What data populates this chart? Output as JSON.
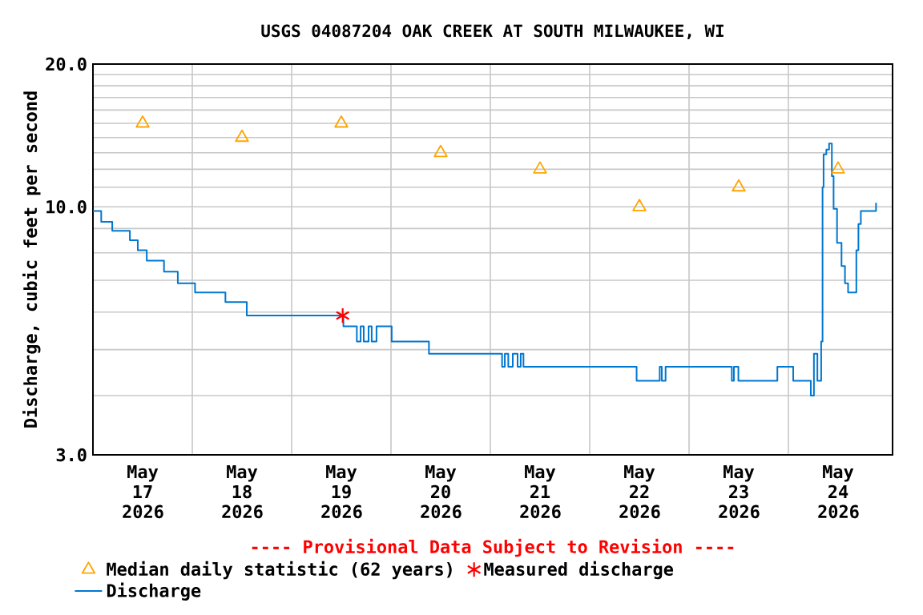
{
  "chart_data": {
    "type": "step",
    "title": "USGS 04087204 OAK CREEK AT SOUTH MILWAUKEE, WI",
    "ylabel": "Discharge, cubic feet per second",
    "annotations": [
      "---- Provisional Data Subject to Revision ----"
    ],
    "log": "y",
    "grid": true,
    "legend": "bottom",
    "xlim": [
      "2026-05-17T00:00",
      "2026-05-25T01:10"
    ],
    "xticks": [
      {
        "value": "2026-05-17T12:00",
        "label": "May 17 2026"
      },
      {
        "value": "2026-05-18T00:00",
        "label": null
      },
      {
        "value": "2026-05-18T12:00",
        "label": "May 18 2026"
      },
      {
        "value": "2026-05-19T00:00",
        "label": null
      },
      {
        "value": "2026-05-19T12:00",
        "label": "May 19 2026"
      },
      {
        "value": "2026-05-20T00:00",
        "label": null
      },
      {
        "value": "2026-05-20T12:00",
        "label": "May 20 2026"
      },
      {
        "value": "2026-05-21T00:00",
        "label": null
      },
      {
        "value": "2026-05-21T12:00",
        "label": "May 21 2026"
      },
      {
        "value": "2026-05-22T00:00",
        "label": null
      },
      {
        "value": "2026-05-22T12:00",
        "label": "May 22 2026"
      },
      {
        "value": "2026-05-23T00:00",
        "label": null
      },
      {
        "value": "2026-05-23T12:00",
        "label": "May 23 2026"
      },
      {
        "value": "2026-05-24T00:00",
        "label": null
      },
      {
        "value": "2026-05-24T12:00",
        "label": "May 24 2026"
      }
    ],
    "ylim": [
      3,
      20
    ],
    "yticks": [
      {
        "value": 3,
        "label": "3.0"
      },
      {
        "value": 4,
        "label": null
      },
      {
        "value": 5,
        "label": null
      },
      {
        "value": 6,
        "label": null
      },
      {
        "value": 7,
        "label": null
      },
      {
        "value": 8,
        "label": null
      },
      {
        "value": 9,
        "label": null
      },
      {
        "value": 10,
        "label": "10.0"
      },
      {
        "value": 11,
        "label": null
      },
      {
        "value": 12,
        "label": null
      },
      {
        "value": 13,
        "label": null
      },
      {
        "value": 14,
        "label": null
      },
      {
        "value": 15,
        "label": null
      },
      {
        "value": 16,
        "label": null
      },
      {
        "value": 17,
        "label": null
      },
      {
        "value": 18,
        "label": null
      },
      {
        "value": 19,
        "label": null
      },
      {
        "value": 20,
        "label": "20.0"
      }
    ],
    "series": [
      {
        "name": "Median daily statistic (62 years)",
        "type": "scatter",
        "marker": "triangle",
        "color": "#ffa500",
        "x": [
          "2026-05-17T12:00",
          "2026-05-18T12:00",
          "2026-05-19T12:00",
          "2026-05-20T12:00",
          "2026-05-21T12:00",
          "2026-05-22T12:00",
          "2026-05-23T12:00",
          "2026-05-24T12:00"
        ],
        "values": [
          15,
          14,
          15,
          13,
          12,
          10,
          11,
          12
        ]
      },
      {
        "name": "Measured discharge",
        "type": "scatter",
        "marker": "cross",
        "color": "#ff0000",
        "x": [
          "2026-05-19T12:20"
        ],
        "values": [
          5.9
        ]
      },
      {
        "name": "Discharge",
        "marker": "none",
        "color": "#0077d0",
        "x": [
          "2026-05-17T00:00",
          "2026-05-17T02:00",
          "2026-05-17T04:40",
          "2026-05-17T08:55",
          "2026-05-17T10:50",
          "2026-05-17T13:00",
          "2026-05-17T17:10",
          "2026-05-17T20:30",
          "2026-05-18T00:40",
          "2026-05-18T08:00",
          "2026-05-18T13:10",
          "2026-05-19T12:30",
          "2026-05-19T15:45",
          "2026-05-19T16:40",
          "2026-05-19T17:25",
          "2026-05-19T18:35",
          "2026-05-19T19:20",
          "2026-05-19T20:30",
          "2026-05-20T00:10",
          "2026-05-20T09:10",
          "2026-05-21T02:50",
          "2026-05-21T03:30",
          "2026-05-21T04:20",
          "2026-05-21T05:25",
          "2026-05-21T06:35",
          "2026-05-21T07:20",
          "2026-05-21T08:00",
          "2026-05-22T11:20",
          "2026-05-22T16:55",
          "2026-05-22T17:25",
          "2026-05-22T18:20",
          "2026-05-23T10:20",
          "2026-05-23T10:50",
          "2026-05-23T11:55",
          "2026-05-23T21:20",
          "2026-05-24T01:10",
          "2026-05-24T05:25",
          "2026-05-24T06:10",
          "2026-05-24T07:00",
          "2026-05-24T07:55",
          "2026-05-24T08:15",
          "2026-05-24T08:30",
          "2026-05-24T09:10",
          "2026-05-24T09:50",
          "2026-05-24T10:30",
          "2026-05-24T10:55",
          "2026-05-24T11:45",
          "2026-05-24T12:50",
          "2026-05-24T13:40",
          "2026-05-24T14:25",
          "2026-05-24T15:35",
          "2026-05-24T16:25",
          "2026-05-24T16:55",
          "2026-05-24T17:30",
          "2026-05-24T20:50",
          "2026-05-24T21:10"
        ],
        "values": [
          9.8,
          9.3,
          8.9,
          8.5,
          8.1,
          7.7,
          7.3,
          6.9,
          6.6,
          6.3,
          5.9,
          5.6,
          5.2,
          5.6,
          5.2,
          5.6,
          5.2,
          5.6,
          5.2,
          4.9,
          4.6,
          4.9,
          4.6,
          4.9,
          4.6,
          4.9,
          4.6,
          4.3,
          4.6,
          4.3,
          4.6,
          4.3,
          4.6,
          4.3,
          4.6,
          4.3,
          4.0,
          4.9,
          4.3,
          5.2,
          11.0,
          12.9,
          13.2,
          13.6,
          11.6,
          9.9,
          8.4,
          7.5,
          6.9,
          6.6,
          6.6,
          8.1,
          9.2,
          9.8,
          9.8,
          10.2
        ]
      }
    ]
  }
}
